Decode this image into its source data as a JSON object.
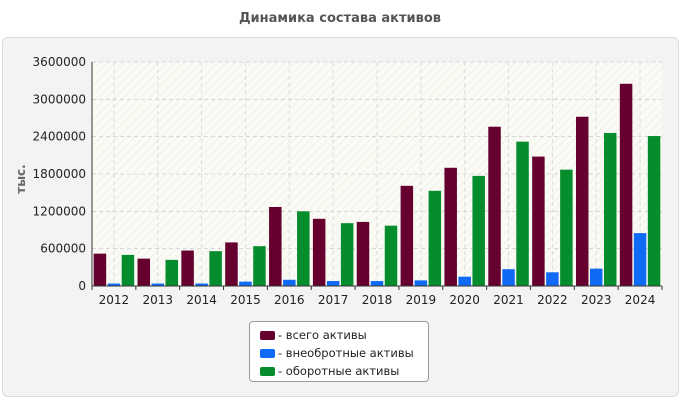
{
  "title": "Динамика состава активов",
  "chart_data": {
    "type": "bar",
    "title": "Динамика состава активов",
    "xlabel": "",
    "ylabel": "тыс.",
    "ylim": [
      0,
      3600000
    ],
    "yticks": [
      "0",
      "600000",
      "1200000",
      "1800000",
      "2400000",
      "3000000",
      "3600000"
    ],
    "categories": [
      "2012",
      "2013",
      "2014",
      "2015",
      "2016",
      "2017",
      "2018",
      "2019",
      "2020",
      "2021",
      "2022",
      "2023",
      "2024"
    ],
    "series": [
      {
        "name": "- всего активы",
        "color": "#66002e",
        "values": [
          520000,
          440000,
          570000,
          700000,
          1270000,
          1080000,
          1030000,
          1610000,
          1900000,
          2560000,
          2080000,
          2720000,
          3250000
        ]
      },
      {
        "name": "- внеобротные активы",
        "color": "#0f6bf5",
        "values": [
          40000,
          40000,
          40000,
          70000,
          100000,
          80000,
          80000,
          90000,
          150000,
          270000,
          220000,
          280000,
          850000
        ]
      },
      {
        "name": "- оборотные активы",
        "color": "#058c2c",
        "values": [
          500000,
          420000,
          560000,
          640000,
          1200000,
          1010000,
          970000,
          1530000,
          1770000,
          2320000,
          1870000,
          2460000,
          2410000
        ]
      }
    ],
    "grid": true,
    "legend": "bottom-center"
  }
}
